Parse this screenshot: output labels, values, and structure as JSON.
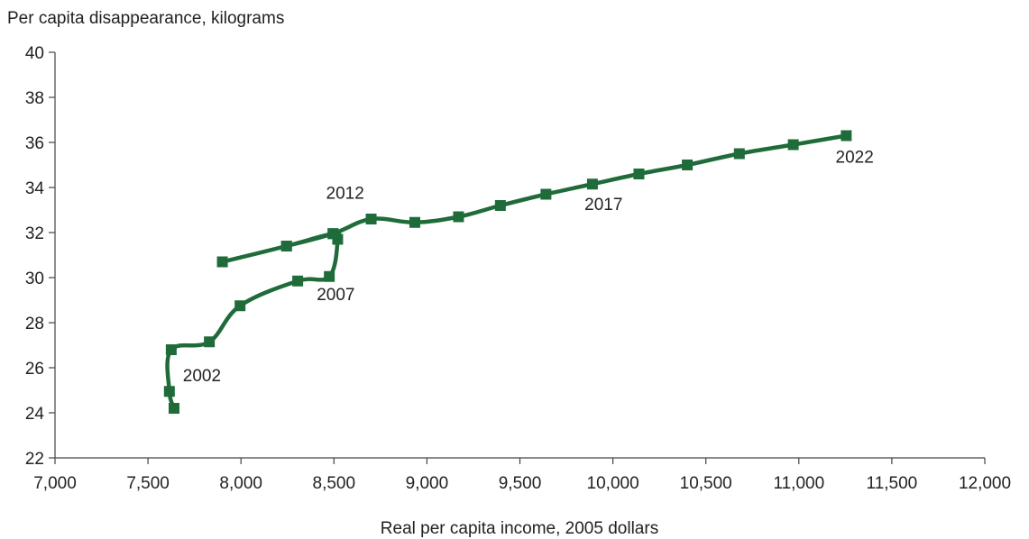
{
  "chart_data": {
    "type": "line",
    "ylabel": "Per capita disappearance, kilograms",
    "xlabel": "Real per capita income, 2005 dollars",
    "xlim": [
      7000,
      12000
    ],
    "ylim": [
      22,
      40
    ],
    "xticks": [
      "7,000",
      "7,500",
      "8,000",
      "8,500",
      "9,000",
      "9,500",
      "10,000",
      "10,500",
      "11,000",
      "11,500",
      "12,000"
    ],
    "xtick_values": [
      7000,
      7500,
      8000,
      8500,
      9000,
      9500,
      10000,
      10500,
      11000,
      11500,
      12000
    ],
    "yticks": [
      "22",
      "24",
      "26",
      "28",
      "30",
      "32",
      "34",
      "36",
      "38",
      "40"
    ],
    "ytick_values": [
      22,
      24,
      26,
      28,
      30,
      32,
      34,
      36,
      38,
      40
    ],
    "grid": false,
    "series": [
      {
        "color": "#1f6b3a",
        "points": [
          {
            "x": 7640,
            "y": 24.2
          },
          {
            "x": 7615,
            "y": 24.95
          },
          {
            "x": 7625,
            "y": 26.8
          },
          {
            "x": 7830,
            "y": 27.15
          },
          {
            "x": 7995,
            "y": 28.75
          },
          {
            "x": 8305,
            "y": 29.85
          },
          {
            "x": 8475,
            "y": 30.05
          },
          {
            "x": 8520,
            "y": 31.7
          },
          {
            "x": 8495,
            "y": 31.95
          },
          {
            "x": 8245,
            "y": 31.4
          },
          {
            "x": 7900,
            "y": 30.7
          },
          {
            "x": 8245,
            "y": 31.4
          },
          {
            "x": 8495,
            "y": 31.95
          },
          {
            "x": 8700,
            "y": 32.6
          },
          {
            "x": 8935,
            "y": 32.45
          },
          {
            "x": 9170,
            "y": 32.7
          },
          {
            "x": 9395,
            "y": 33.2
          },
          {
            "x": 9640,
            "y": 33.7
          },
          {
            "x": 9890,
            "y": 34.15
          },
          {
            "x": 10140,
            "y": 34.6
          },
          {
            "x": 10400,
            "y": 35.0
          },
          {
            "x": 10680,
            "y": 35.5
          },
          {
            "x": 10970,
            "y": 35.9
          },
          {
            "x": 11255,
            "y": 36.3
          }
        ]
      }
    ],
    "annotations": [
      {
        "text": "2002",
        "x": 7790,
        "y": 25.4
      },
      {
        "text": "2007",
        "x": 8510,
        "y": 29.0
      },
      {
        "text": "2012",
        "x": 8560,
        "y": 33.5
      },
      {
        "text": "2017",
        "x": 9950,
        "y": 33.0
      },
      {
        "text": "2022",
        "x": 11300,
        "y": 35.1
      }
    ]
  }
}
